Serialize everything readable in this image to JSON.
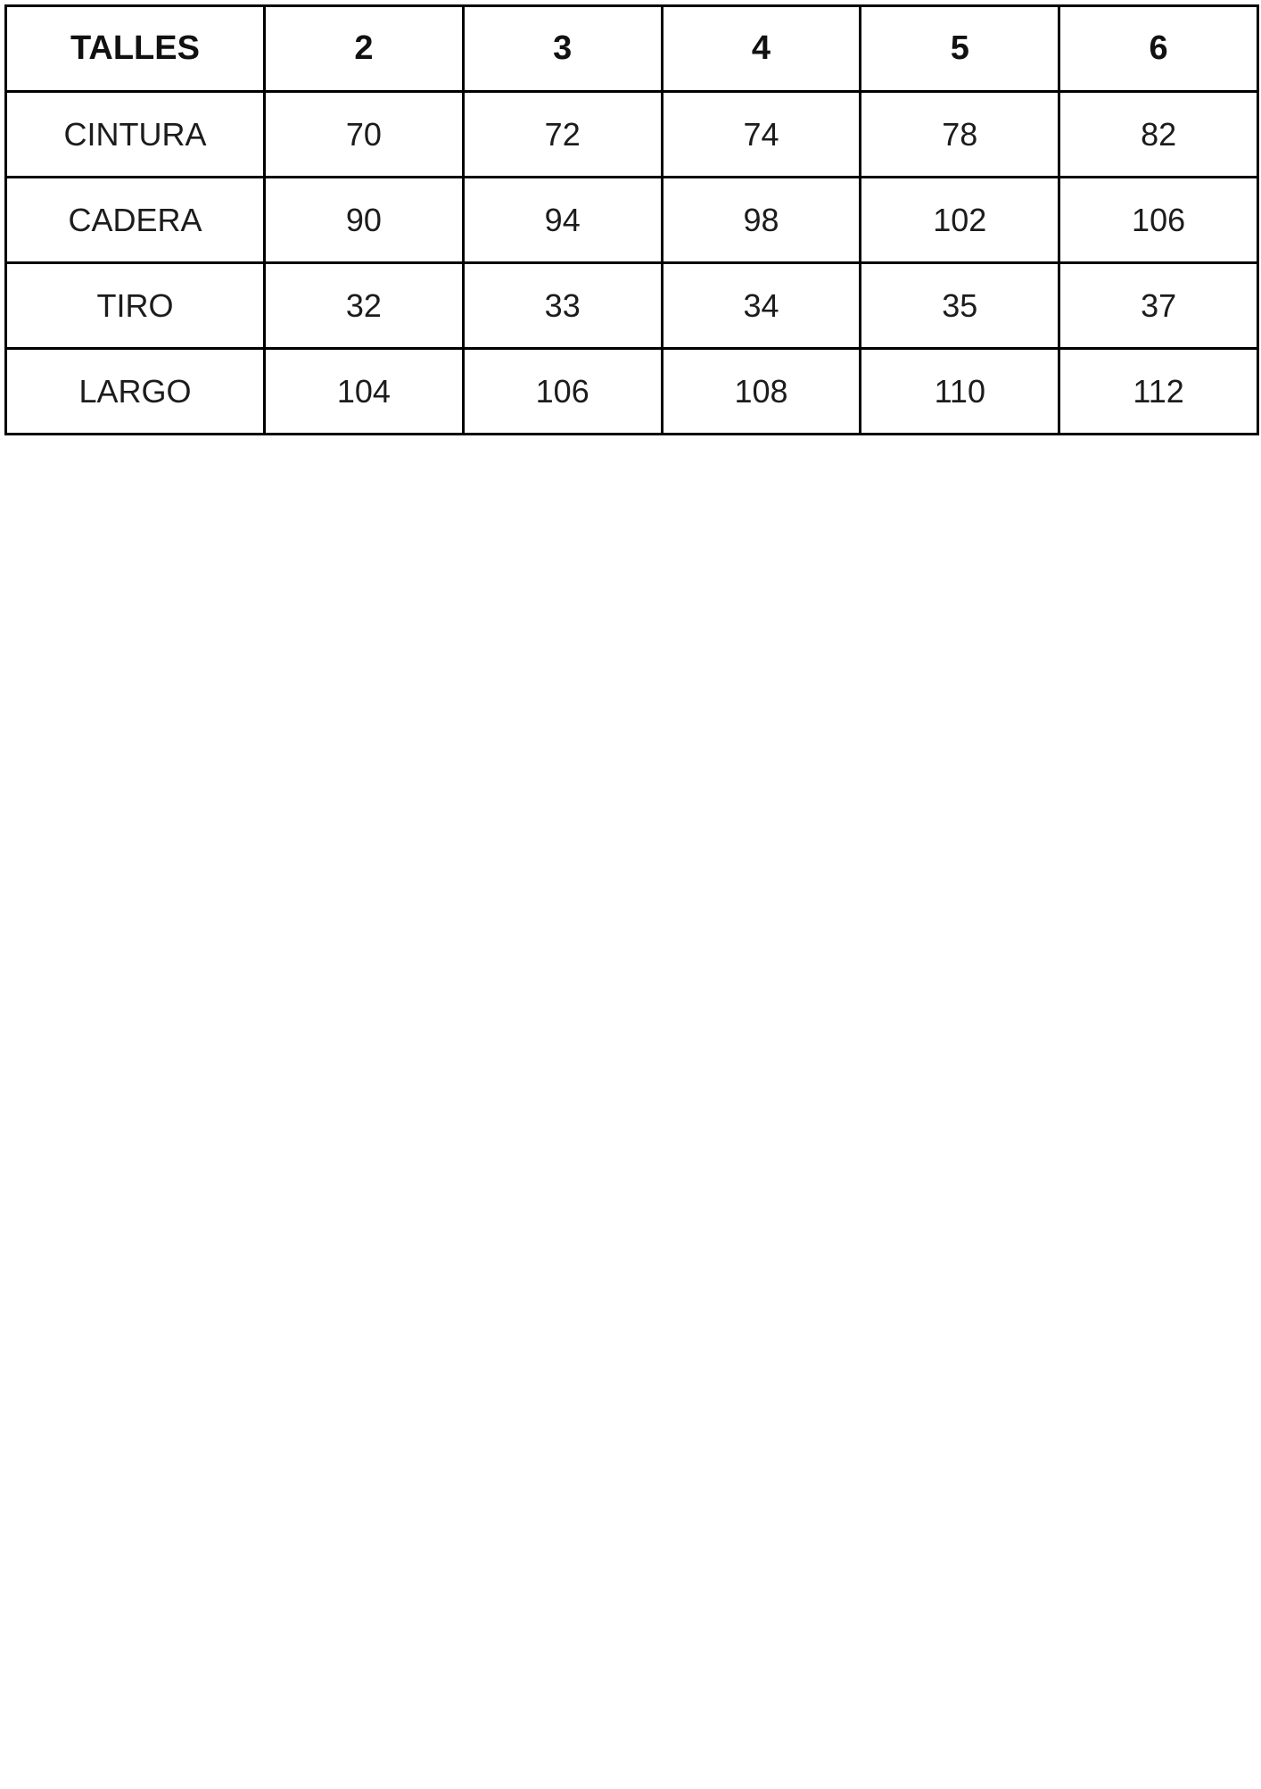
{
  "chart_data": {
    "type": "table",
    "title": "TALLES",
    "columns": [
      "TALLES",
      "2",
      "3",
      "4",
      "5",
      "6"
    ],
    "rows": [
      {
        "label": "CINTURA",
        "values": [
          "70",
          "72",
          "74",
          "78",
          "82"
        ]
      },
      {
        "label": "CADERA",
        "values": [
          "90",
          "94",
          "98",
          "102",
          "106"
        ]
      },
      {
        "label": "TIRO",
        "values": [
          "32",
          "33",
          "34",
          "35",
          "37"
        ]
      },
      {
        "label": "LARGO",
        "values": [
          "104",
          "106",
          "108",
          "110",
          "112"
        ]
      }
    ]
  },
  "table": {
    "header": {
      "label": "TALLES",
      "sizes": [
        "2",
        "3",
        "4",
        "5",
        "6"
      ]
    },
    "rows": [
      {
        "label": "CINTURA",
        "values": [
          "70",
          "72",
          "74",
          "78",
          "82"
        ]
      },
      {
        "label": "CADERA",
        "values": [
          "90",
          "94",
          "98",
          "102",
          "106"
        ]
      },
      {
        "label": "TIRO",
        "values": [
          "32",
          "33",
          "34",
          "35",
          "37"
        ]
      },
      {
        "label": "LARGO",
        "values": [
          "104",
          "106",
          "108",
          "110",
          "112"
        ]
      }
    ]
  },
  "colors": {
    "border": "#000000",
    "text": "#1c1c1c",
    "background": "#ffffff"
  }
}
